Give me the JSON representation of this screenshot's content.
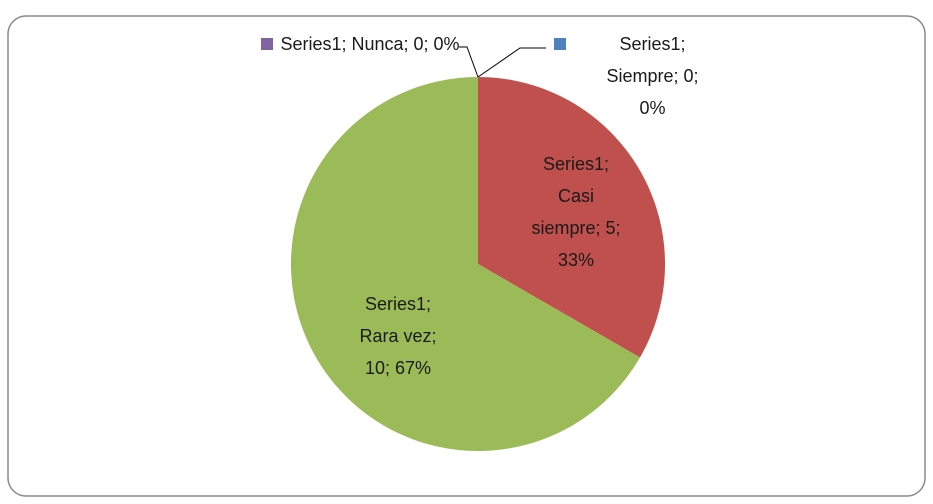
{
  "chart_data": {
    "type": "pie",
    "series_name": "Series1",
    "categories": [
      "Siempre",
      "Casi siempre",
      "Rara vez",
      "Nunca"
    ],
    "values": [
      0,
      5,
      10,
      0
    ],
    "value_labels": [
      "Series1; Siempre; 0; 0%",
      "Series1; Casi siempre; 5; 33%",
      "Series1; Rara vez; 10; 67%",
      "Series1; Nunca; 0; 0%"
    ],
    "colors": [
      "#4f81bd",
      "#c0504d",
      "#9bbb59",
      "#8064a2"
    ],
    "legend_keys_in_labels": true
  }
}
